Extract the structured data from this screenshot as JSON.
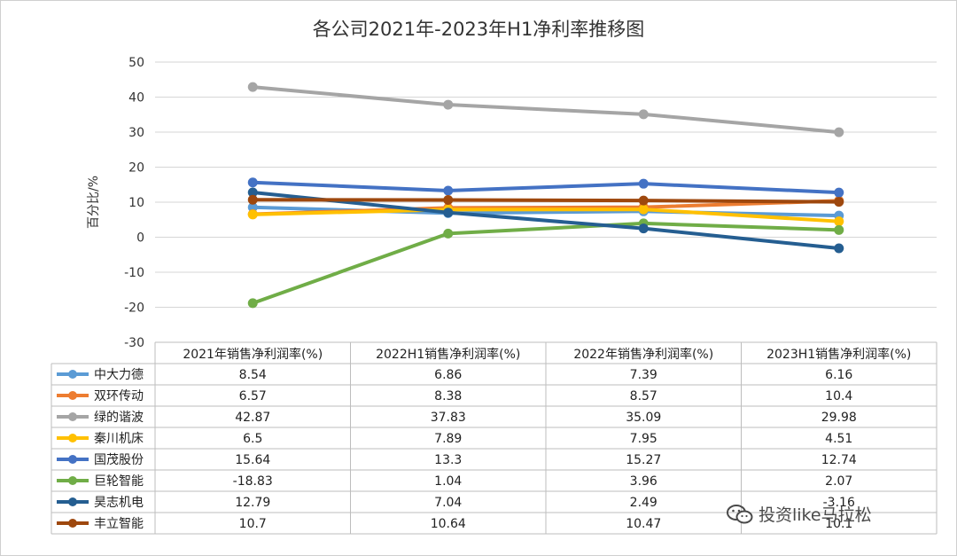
{
  "chart_data": {
    "type": "line",
    "title": "各公司2021年-2023年H1净利率推移图",
    "ylabel": "百分比/%",
    "ylim": [
      -30,
      50
    ],
    "yticks": [
      50,
      40,
      30,
      20,
      10,
      0,
      -10,
      -20,
      -30
    ],
    "categories": [
      "2021年销售净利润率(%)",
      "2022H1销售净利润率(%)",
      "2022年销售净利润率(%)",
      "2023H1销售净利润率(%)"
    ],
    "series": [
      {
        "name": "中大力德",
        "color": "#5b9bd5",
        "values": [
          8.54,
          6.86,
          7.39,
          6.16
        ],
        "labels": [
          "8.54",
          "6.86",
          "7.39",
          "6.16"
        ]
      },
      {
        "name": "双环传动",
        "color": "#ed7d31",
        "values": [
          6.57,
          8.38,
          8.57,
          10.4
        ],
        "labels": [
          "6.57",
          "8.38",
          "8.57",
          "10.4"
        ]
      },
      {
        "name": "绿的谐波",
        "color": "#a5a5a5",
        "values": [
          42.87,
          37.83,
          35.09,
          29.98
        ],
        "labels": [
          "42.87",
          "37.83",
          "35.09",
          "29.98"
        ]
      },
      {
        "name": "秦川机床",
        "color": "#ffc000",
        "values": [
          6.5,
          7.89,
          7.95,
          4.51
        ],
        "labels": [
          "6.5",
          "7.89",
          "7.95",
          "4.51"
        ]
      },
      {
        "name": "国茂股份",
        "color": "#4472c4",
        "values": [
          15.64,
          13.3,
          15.27,
          12.74
        ],
        "labels": [
          "15.64",
          "13.3",
          "15.27",
          "12.74"
        ]
      },
      {
        "name": "巨轮智能",
        "color": "#70ad47",
        "values": [
          -18.83,
          1.04,
          3.96,
          2.07
        ],
        "labels": [
          "-18.83",
          "1.04",
          "3.96",
          "2.07"
        ]
      },
      {
        "name": "昊志机电",
        "color": "#255e91",
        "values": [
          12.79,
          7.04,
          2.49,
          -3.16
        ],
        "labels": [
          "12.79",
          "7.04",
          "2.49",
          "-3.16"
        ]
      },
      {
        "name": "丰立智能",
        "color": "#9e480e",
        "values": [
          10.7,
          10.64,
          10.47,
          10.1
        ],
        "labels": [
          "10.7",
          "10.64",
          "10.47",
          "10.1"
        ]
      }
    ]
  },
  "watermark": {
    "text": "投资like马拉松"
  }
}
